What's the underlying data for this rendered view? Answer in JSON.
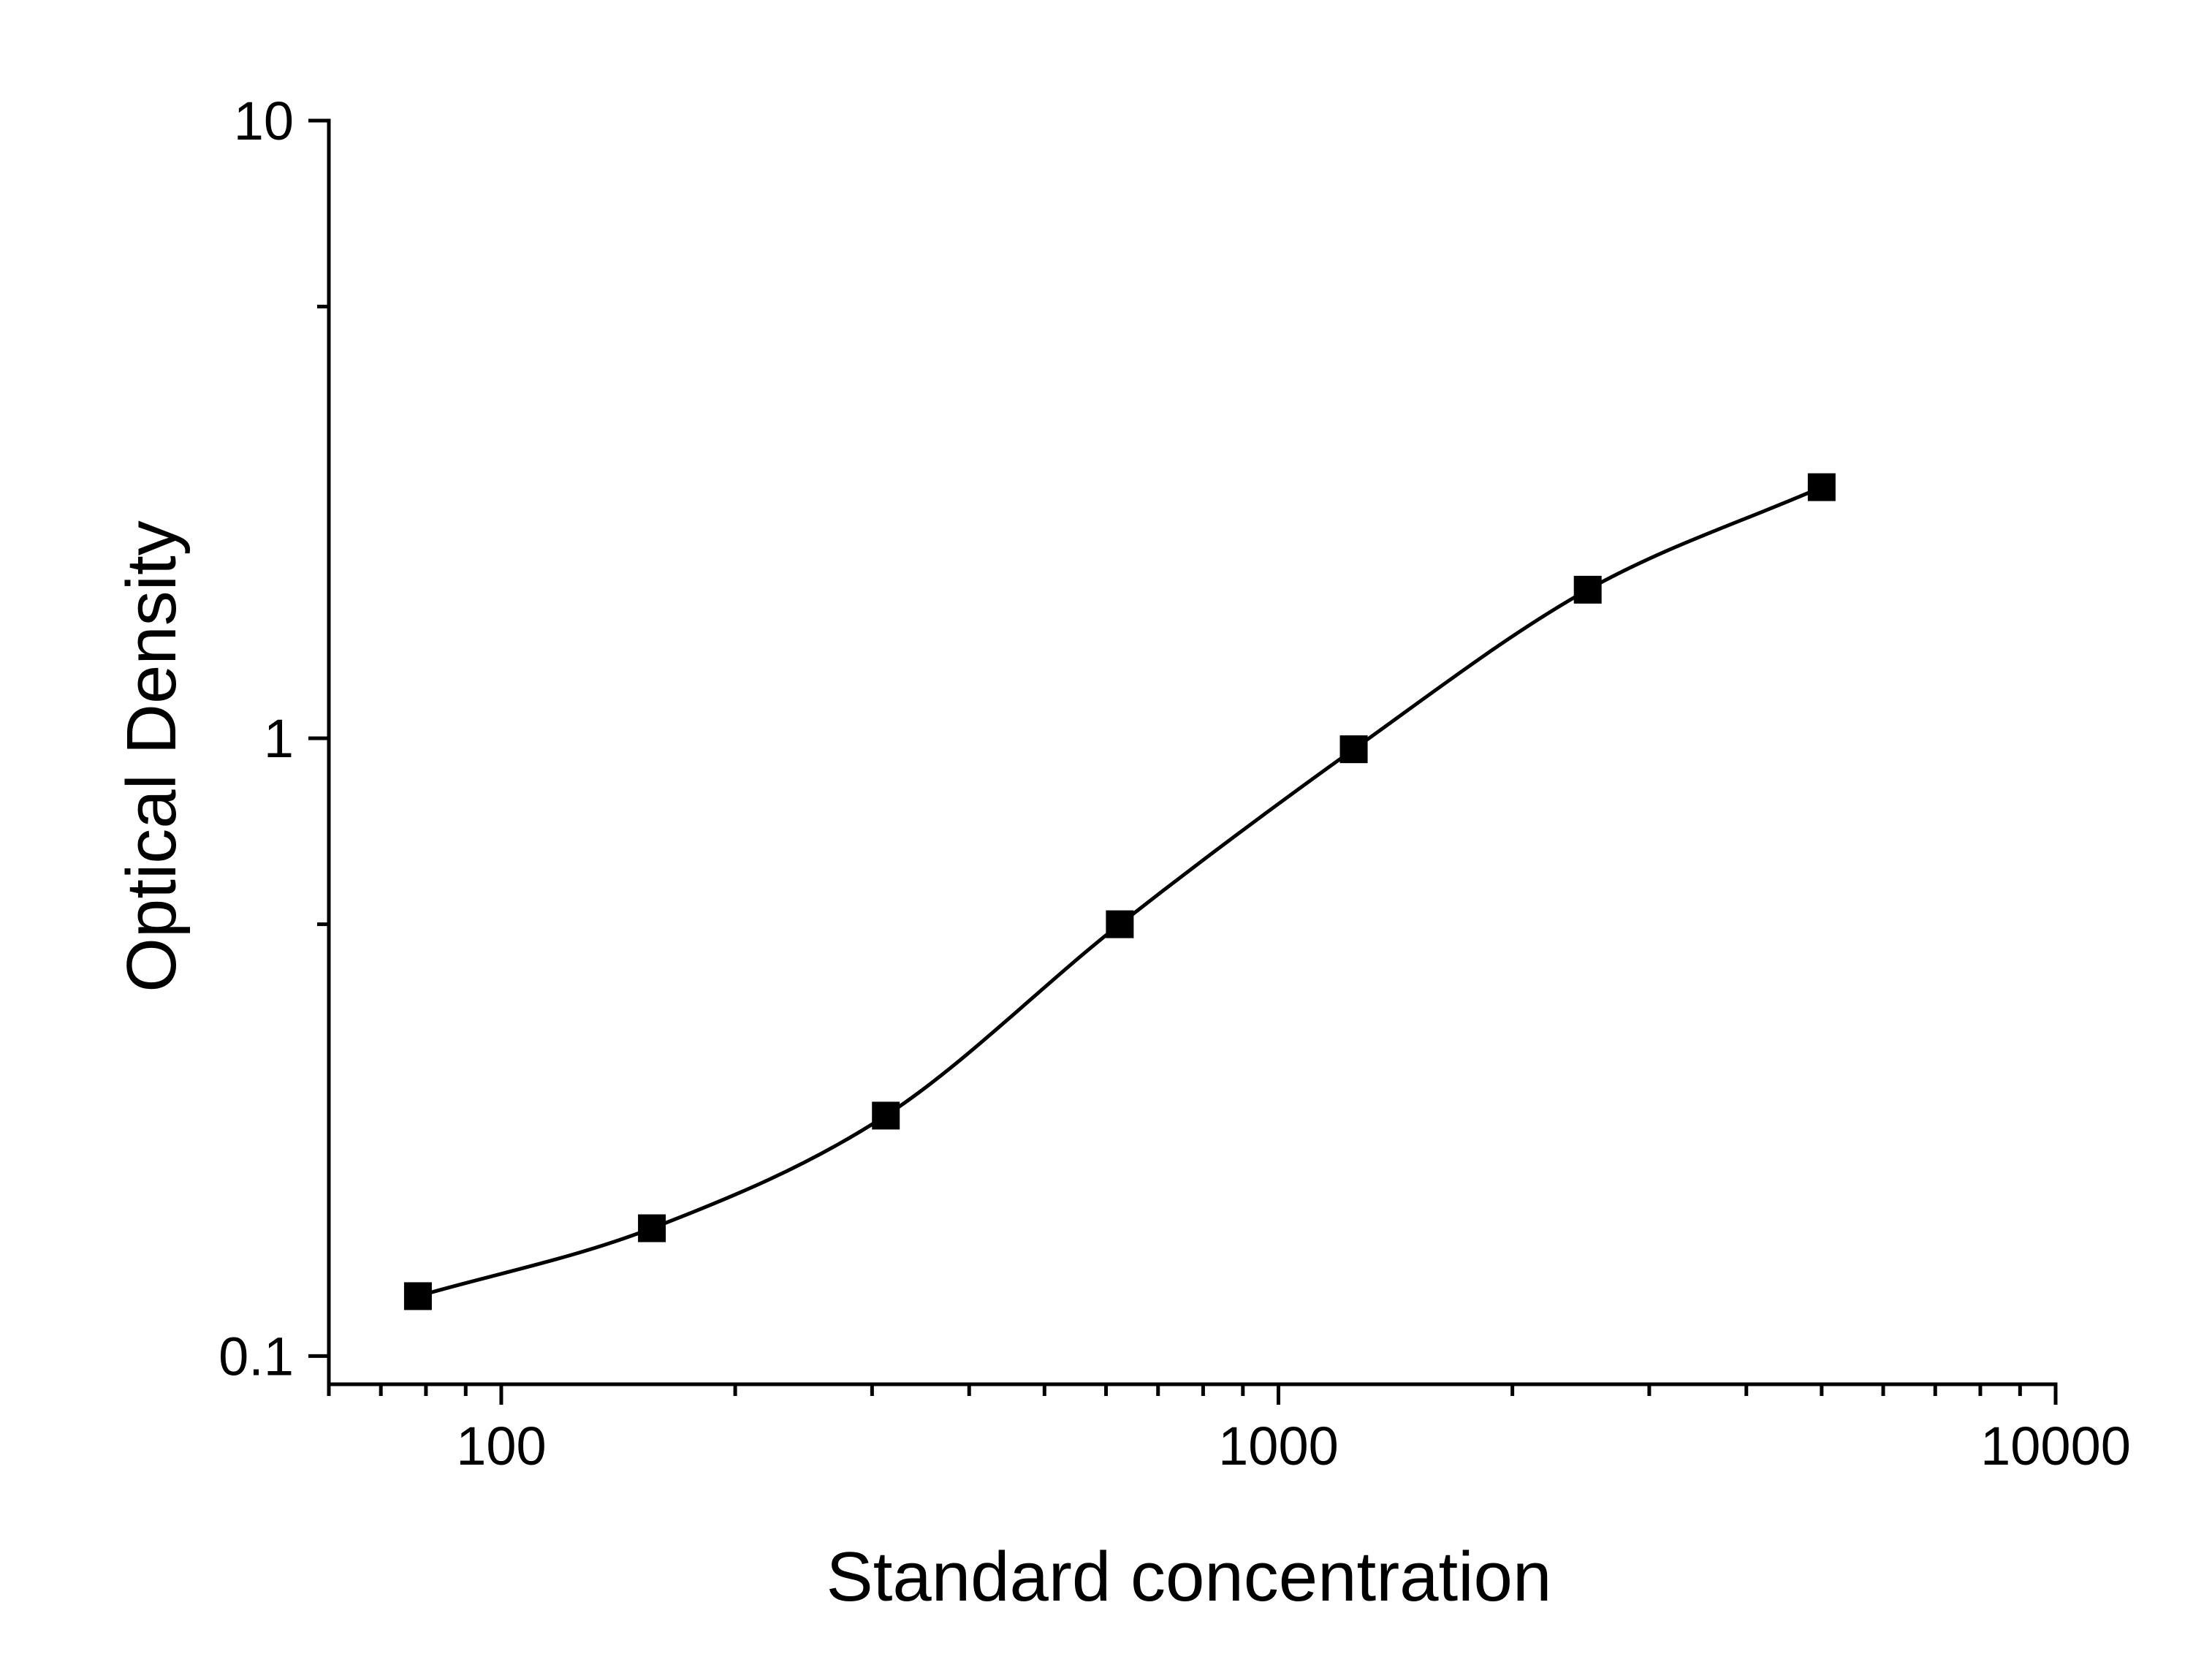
{
  "chart_data": {
    "type": "scatter",
    "title": "",
    "xlabel": "Standard concentration",
    "ylabel": "Optical Density",
    "x_scale": "log",
    "y_scale": "log",
    "xlim": [
      60,
      10000
    ],
    "ylim": [
      0.09,
      10
    ],
    "x_ticks": [
      {
        "value": 100,
        "label": "100"
      },
      {
        "value": 1000,
        "label": "1000"
      },
      {
        "value": 10000,
        "label": "10000"
      }
    ],
    "y_ticks": [
      {
        "value": 0.1,
        "label": "0.1"
      },
      {
        "value": 1,
        "label": "1"
      },
      {
        "value": 10,
        "label": "10"
      }
    ],
    "grid": false,
    "legend": "none",
    "series": [
      {
        "x": [
          78.125,
          156.25,
          312.5,
          625,
          1250,
          2500,
          5000
        ],
        "y": [
          0.125,
          0.161,
          0.245,
          0.5,
          0.96,
          1.74,
          2.55
        ],
        "marker": "square",
        "line": "smooth-fit",
        "color": "#000000"
      }
    ]
  }
}
